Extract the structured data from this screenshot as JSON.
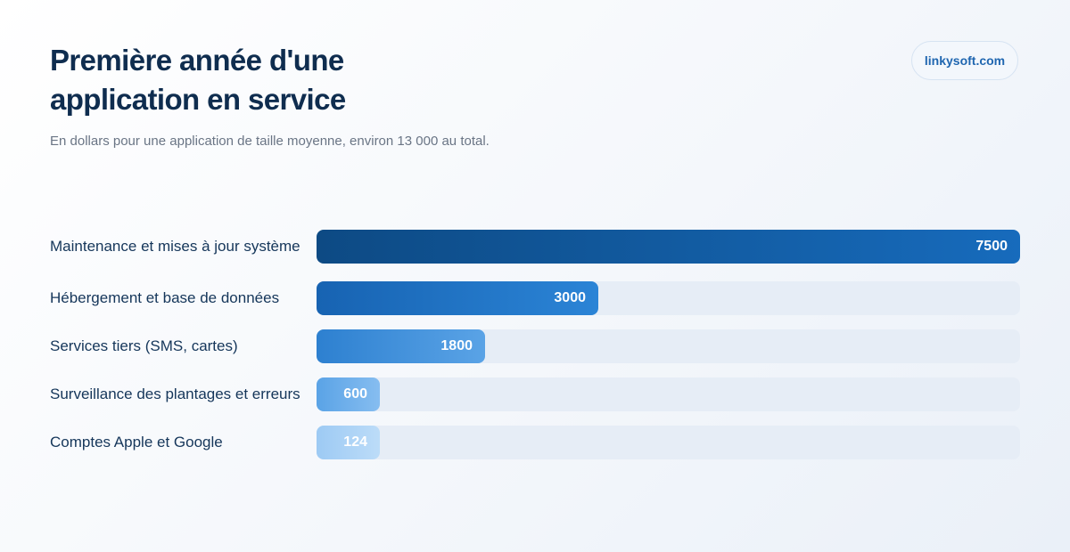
{
  "header": {
    "title": "Première année d'une application en service",
    "subtitle": "En dollars pour une application de taille moyenne, environ 13 000 au total.",
    "brand": "linkysoft.com"
  },
  "colors": {
    "title": "#0f2d4f",
    "label": "#15365a",
    "subtitle": "#6a7585",
    "track": "#e6edf6",
    "brand_text": "#1f66b0",
    "bar_gradients": [
      [
        "#0d4a84",
        "#176bbc"
      ],
      [
        "#1763b2",
        "#2b84d6"
      ],
      [
        "#2d80d0",
        "#5aa3e6"
      ],
      [
        "#5aa3e6",
        "#86bdf0"
      ],
      [
        "#9dcaf4",
        "#bcdcf8"
      ]
    ]
  },
  "chart_data": {
    "type": "bar",
    "orientation": "horizontal",
    "categories": [
      "Maintenance et mises à jour système",
      "Hébergement et base de données",
      "Services tiers (SMS, cartes)",
      "Surveillance des plantages et erreurs",
      "Comptes Apple et Google"
    ],
    "values": [
      7500,
      3000,
      1800,
      600,
      124
    ],
    "xlim": [
      0,
      7500
    ],
    "title": "Première année d'une application en service",
    "subtitle": "En dollars pour une application de taille moyenne, environ 13 000 au total.",
    "grid": false,
    "data_labels": true
  }
}
